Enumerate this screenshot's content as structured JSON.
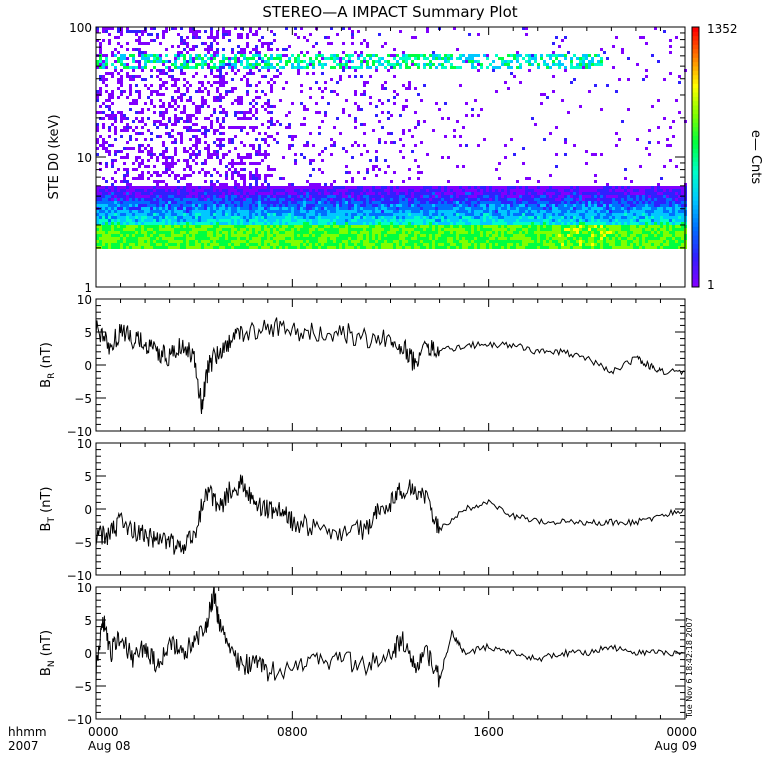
{
  "title": "STEREO—A IMPACT Summary Plot",
  "colors": {
    "axis": "#000000",
    "trace": "#000000"
  },
  "chart_data": [
    {
      "type": "heatmap",
      "panel": "spectrogram",
      "ylabel": "STE D0 (keV)",
      "yscale": "log",
      "ylim": [
        1,
        100
      ],
      "yticks": [
        "1",
        "10",
        "100"
      ],
      "colorbar": {
        "label": "e— Cnts",
        "min": "1",
        "max": "1352",
        "scale": "log",
        "colormap": [
          "#8000ff",
          "#3020ff",
          "#0070ff",
          "#00c8ff",
          "#00ffc8",
          "#00ff40",
          "#80ff00",
          "#ffff00",
          "#ff8000",
          "#ff0000"
        ]
      },
      "dense_band_keV": [
        2,
        6
      ],
      "bright_band_keV": [
        2,
        3
      ],
      "sparse_line_keV": 55
    },
    {
      "type": "line",
      "panel": "BR",
      "ylabel_main": "B",
      "ylabel_sub": "R",
      "ylabel_unit": " (nT)",
      "ylim": [
        -10,
        10
      ],
      "yticks": [
        "10",
        "5",
        "0",
        "−5",
        "−10"
      ],
      "x_hours": [
        0,
        0.5,
        1,
        1.5,
        2,
        2.5,
        3,
        3.5,
        4,
        4.3,
        4.6,
        5,
        5.5,
        6,
        7,
        8,
        9,
        10,
        11,
        12,
        12.5,
        13,
        13.5,
        14,
        15,
        16,
        17,
        18,
        19,
        20,
        21,
        22,
        22.5,
        23,
        24
      ],
      "values": [
        6,
        3,
        5,
        4,
        3,
        2,
        1,
        3,
        1,
        -6,
        0,
        2,
        4,
        5,
        6,
        5,
        5,
        5,
        4,
        4,
        3,
        0,
        3,
        2,
        3,
        3,
        3,
        2,
        2,
        1,
        -1,
        1,
        0,
        -1,
        -1
      ]
    },
    {
      "type": "line",
      "panel": "BT",
      "ylabel_main": "B",
      "ylabel_sub": "T",
      "ylabel_unit": " (nT)",
      "ylim": [
        -10,
        10
      ],
      "yticks": [
        "10",
        "5",
        "0",
        "−5",
        "−10"
      ],
      "x_hours": [
        0,
        0.5,
        1,
        1.5,
        2,
        2.5,
        3,
        3.5,
        4,
        4.5,
        5,
        5.5,
        6,
        6.5,
        7,
        7.5,
        8,
        9,
        10,
        11,
        11.5,
        12,
        12.5,
        13,
        13.5,
        14,
        15,
        16,
        17,
        18,
        19,
        20,
        21,
        22,
        23,
        24
      ],
      "values": [
        -4,
        -4,
        -2,
        -3,
        -4,
        -5,
        -5,
        -6,
        -4,
        3,
        0,
        3,
        4,
        1,
        0,
        0,
        -2,
        -3,
        -4,
        -3,
        0,
        1,
        3,
        3,
        1,
        -3,
        0,
        1,
        -1,
        -2,
        -2,
        -2,
        -2,
        -2,
        -1,
        0
      ]
    },
    {
      "type": "line",
      "panel": "BN",
      "ylabel_main": "B",
      "ylabel_sub": "N",
      "ylabel_unit": " (nT)",
      "ylim": [
        -10,
        10
      ],
      "yticks": [
        "10",
        "5",
        "0",
        "−5",
        "−10"
      ],
      "x_hours": [
        0,
        0.3,
        0.6,
        1,
        1.5,
        2,
        2.5,
        3,
        3.5,
        4,
        4.5,
        4.8,
        5,
        5.5,
        6,
        6.5,
        7,
        8,
        9,
        10,
        11,
        12,
        12.5,
        13,
        13.5,
        14,
        14.5,
        15,
        16,
        17,
        18,
        19,
        20,
        21,
        22,
        23,
        24
      ],
      "values": [
        -3,
        5,
        0,
        3,
        -1,
        1,
        -2,
        2,
        0,
        2,
        4,
        9,
        5,
        0,
        -2,
        -1,
        -3,
        -2,
        -1,
        -1,
        -2,
        0,
        2,
        -2,
        0,
        -4,
        3,
        0,
        1,
        0,
        -1,
        0,
        0,
        1,
        0,
        0,
        0
      ]
    }
  ],
  "xaxis": {
    "row1_label": "hhmm",
    "row2_label": "2007",
    "ticks": [
      {
        "top": "0000",
        "bottom": "Aug 08",
        "hour": 0
      },
      {
        "top": "0800",
        "bottom": "",
        "hour": 8
      },
      {
        "top": "1600",
        "bottom": "",
        "hour": 16
      },
      {
        "top": "0000",
        "bottom": "Aug 09",
        "hour": 24
      }
    ]
  },
  "stamp": "Tue Nov  6 18:42:18 2007"
}
